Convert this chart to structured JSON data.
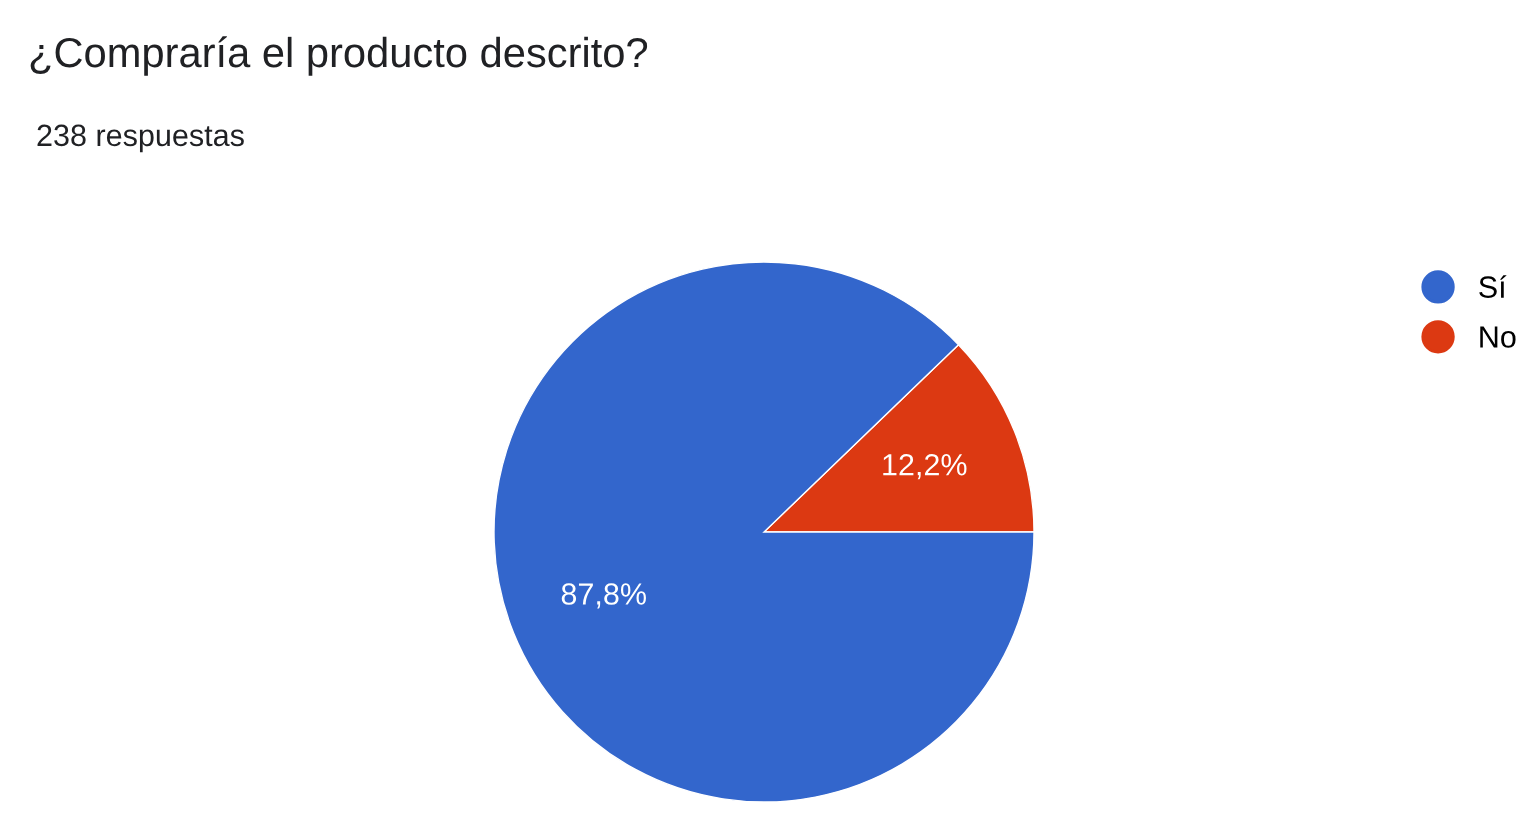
{
  "chart_data": {
    "type": "pie",
    "title": "¿Compraría el producto descrito?",
    "subtitle": "238 respuestas",
    "categories": [
      "Sí",
      "No"
    ],
    "values": [
      87.8,
      12.2
    ],
    "colors": [
      "#3366cc",
      "#dc3912"
    ],
    "value_labels": [
      "87,8%",
      "12,2%"
    ],
    "legend": "right"
  }
}
